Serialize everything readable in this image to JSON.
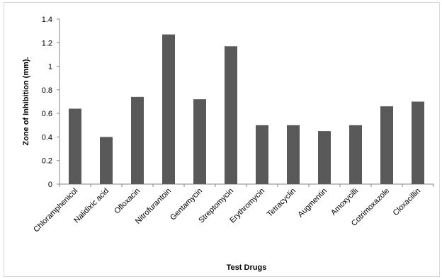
{
  "chart_data": {
    "type": "bar",
    "title": "",
    "xlabel": "Test Drugs",
    "ylabel": "Zone of Inhibition (mm).",
    "categories": [
      "Chloramphenicol",
      "Nalidixic acid",
      "Ofloxacin",
      "Nitrofurantoin",
      "Gentamycin",
      "Streptomycin",
      "Erythromycin",
      "Tetracyclin",
      "Augmentin",
      "Amoxycilli",
      "Cotrimoxazole",
      "Cloxacillin"
    ],
    "values": [
      0.64,
      0.4,
      0.74,
      1.27,
      0.72,
      1.17,
      0.5,
      0.5,
      0.45,
      0.5,
      0.66,
      0.7
    ],
    "ylim": [
      0,
      1.4
    ],
    "yticks": [
      "0",
      "0.2",
      "0.4",
      "0.6",
      "0.8",
      "1",
      "1.2",
      "1.4"
    ],
    "grid": false,
    "legend": "none",
    "bar_color": "#595959"
  }
}
